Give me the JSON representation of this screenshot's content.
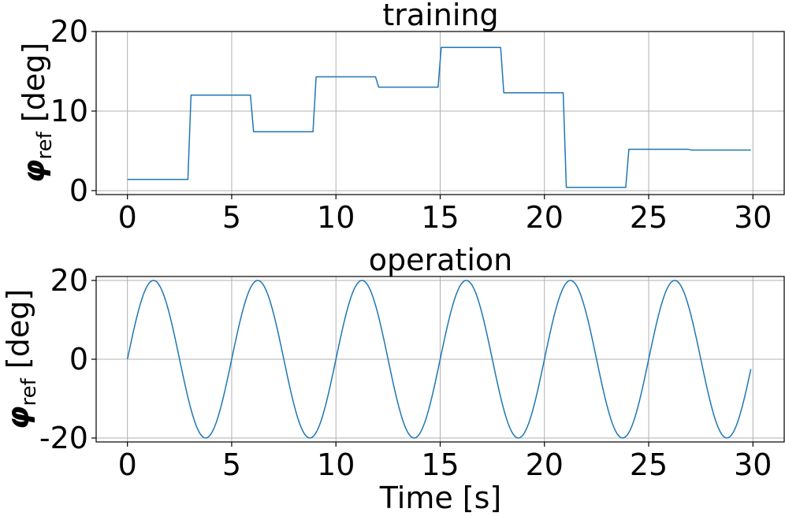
{
  "figure": {
    "xlabel": "Time [s]",
    "line_color": "#1f77b4"
  },
  "chart_data": [
    {
      "type": "line",
      "title": "training",
      "ylabel_symbol": "φ",
      "ylabel_subscript": "ref",
      "ylabel_unit": " [deg]",
      "xlim": [
        -1.5,
        31.5
      ],
      "ylim": [
        -0.5,
        20
      ],
      "xticks": [
        0,
        5,
        10,
        15,
        20,
        25,
        30
      ],
      "xtick_labels": [
        "0",
        "5",
        "10",
        "15",
        "20",
        "25",
        "30"
      ],
      "yticks": [
        0,
        10,
        20
      ],
      "ytick_labels": [
        "0",
        "10",
        "20"
      ],
      "grid": true,
      "series": [
        {
          "x": [
            0,
            2.9,
            3.05,
            5.9,
            6.05,
            8.9,
            9.05,
            11.9,
            12.05,
            14.9,
            15.05,
            17.9,
            18.05,
            20.9,
            21.05,
            23.9,
            24.05,
            26.9,
            27.05,
            29.9
          ],
          "y": [
            1.4,
            1.4,
            12.0,
            12.0,
            7.4,
            7.4,
            14.3,
            14.3,
            13.0,
            13.0,
            18.0,
            18.0,
            12.3,
            12.3,
            0.4,
            0.4,
            5.2,
            5.2,
            5.1,
            5.1
          ]
        }
      ]
    },
    {
      "type": "line",
      "title": "operation",
      "ylabel_symbol": "φ",
      "ylabel_subscript": "ref",
      "ylabel_unit": " [deg]",
      "xlim": [
        -1.5,
        31.5
      ],
      "ylim": [
        -21,
        21
      ],
      "xticks": [
        0,
        5,
        10,
        15,
        20,
        25,
        30
      ],
      "xtick_labels": [
        "0",
        "5",
        "10",
        "15",
        "20",
        "25",
        "30"
      ],
      "yticks": [
        -20,
        0,
        20
      ],
      "ytick_labels": [
        "-20",
        "0",
        "20"
      ],
      "grid": true,
      "series": [
        {
          "function": "20*sin(2*pi*0.2*t)",
          "amplitude": 20,
          "frequency_hz": 0.2,
          "t_start": 0,
          "t_end": 29.9
        }
      ]
    }
  ]
}
